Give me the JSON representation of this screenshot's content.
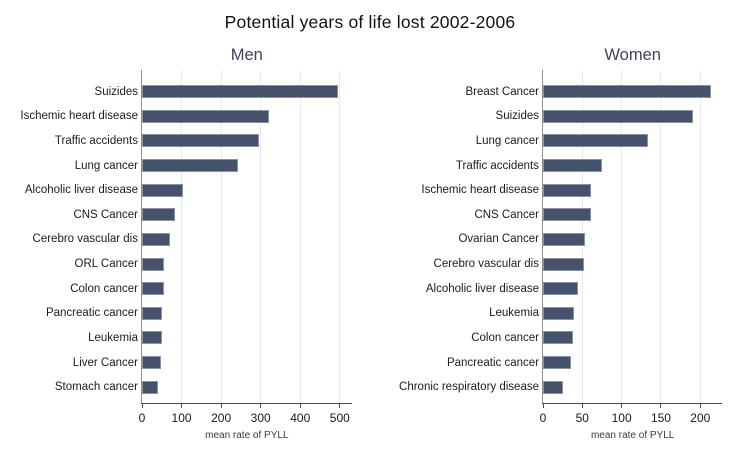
{
  "title": "Potential years of life lost 2002-2006",
  "colors": {
    "bar_fill": "#44536b",
    "bar_border": "#8a93a3",
    "gridline": "#e7e9ed",
    "panel_title": "#3d4559",
    "axis": "#4a4f57"
  },
  "chart_data": [
    {
      "type": "bar",
      "orientation": "horizontal",
      "title": "Men",
      "xlabel": "mean rate of PYLL",
      "xlim": [
        0,
        530
      ],
      "xticks": [
        0,
        100,
        200,
        300,
        400,
        500
      ],
      "grid": true,
      "categories": [
        "Suizides",
        "Ischemic heart disease",
        "Traffic accidents",
        "Lung cancer",
        "Alcoholic liver disease",
        "CNS Cancer",
        "Cerebro vascular dis",
        "ORL Cancer",
        "Colon cancer",
        "Pancreatic cancer",
        "Leukemia",
        "Liver Cancer",
        "Stomach cancer"
      ],
      "values": [
        495,
        320,
        296,
        243,
        103,
        83,
        72,
        56,
        55,
        51,
        50,
        48,
        40
      ]
    },
    {
      "type": "bar",
      "orientation": "horizontal",
      "title": "Women",
      "xlabel": "mean rate of PYLL",
      "xlim": [
        0,
        228
      ],
      "xticks": [
        0,
        50,
        100,
        150,
        200
      ],
      "grid": true,
      "categories": [
        "Breast Cancer",
        "Suizides",
        "Lung cancer",
        "Traffic accidents",
        "Ischemic heart disease",
        "CNS Cancer",
        "Ovarian Cancer",
        "Cerebro vascular dis",
        "Alcoholic liver disease",
        "Leukemia",
        "Colon cancer",
        "Pancreatic cancer",
        "Chronic respiratory disease"
      ],
      "values": [
        214,
        191,
        133,
        75,
        61,
        61,
        54,
        52,
        45,
        39,
        38,
        35,
        26
      ]
    }
  ]
}
